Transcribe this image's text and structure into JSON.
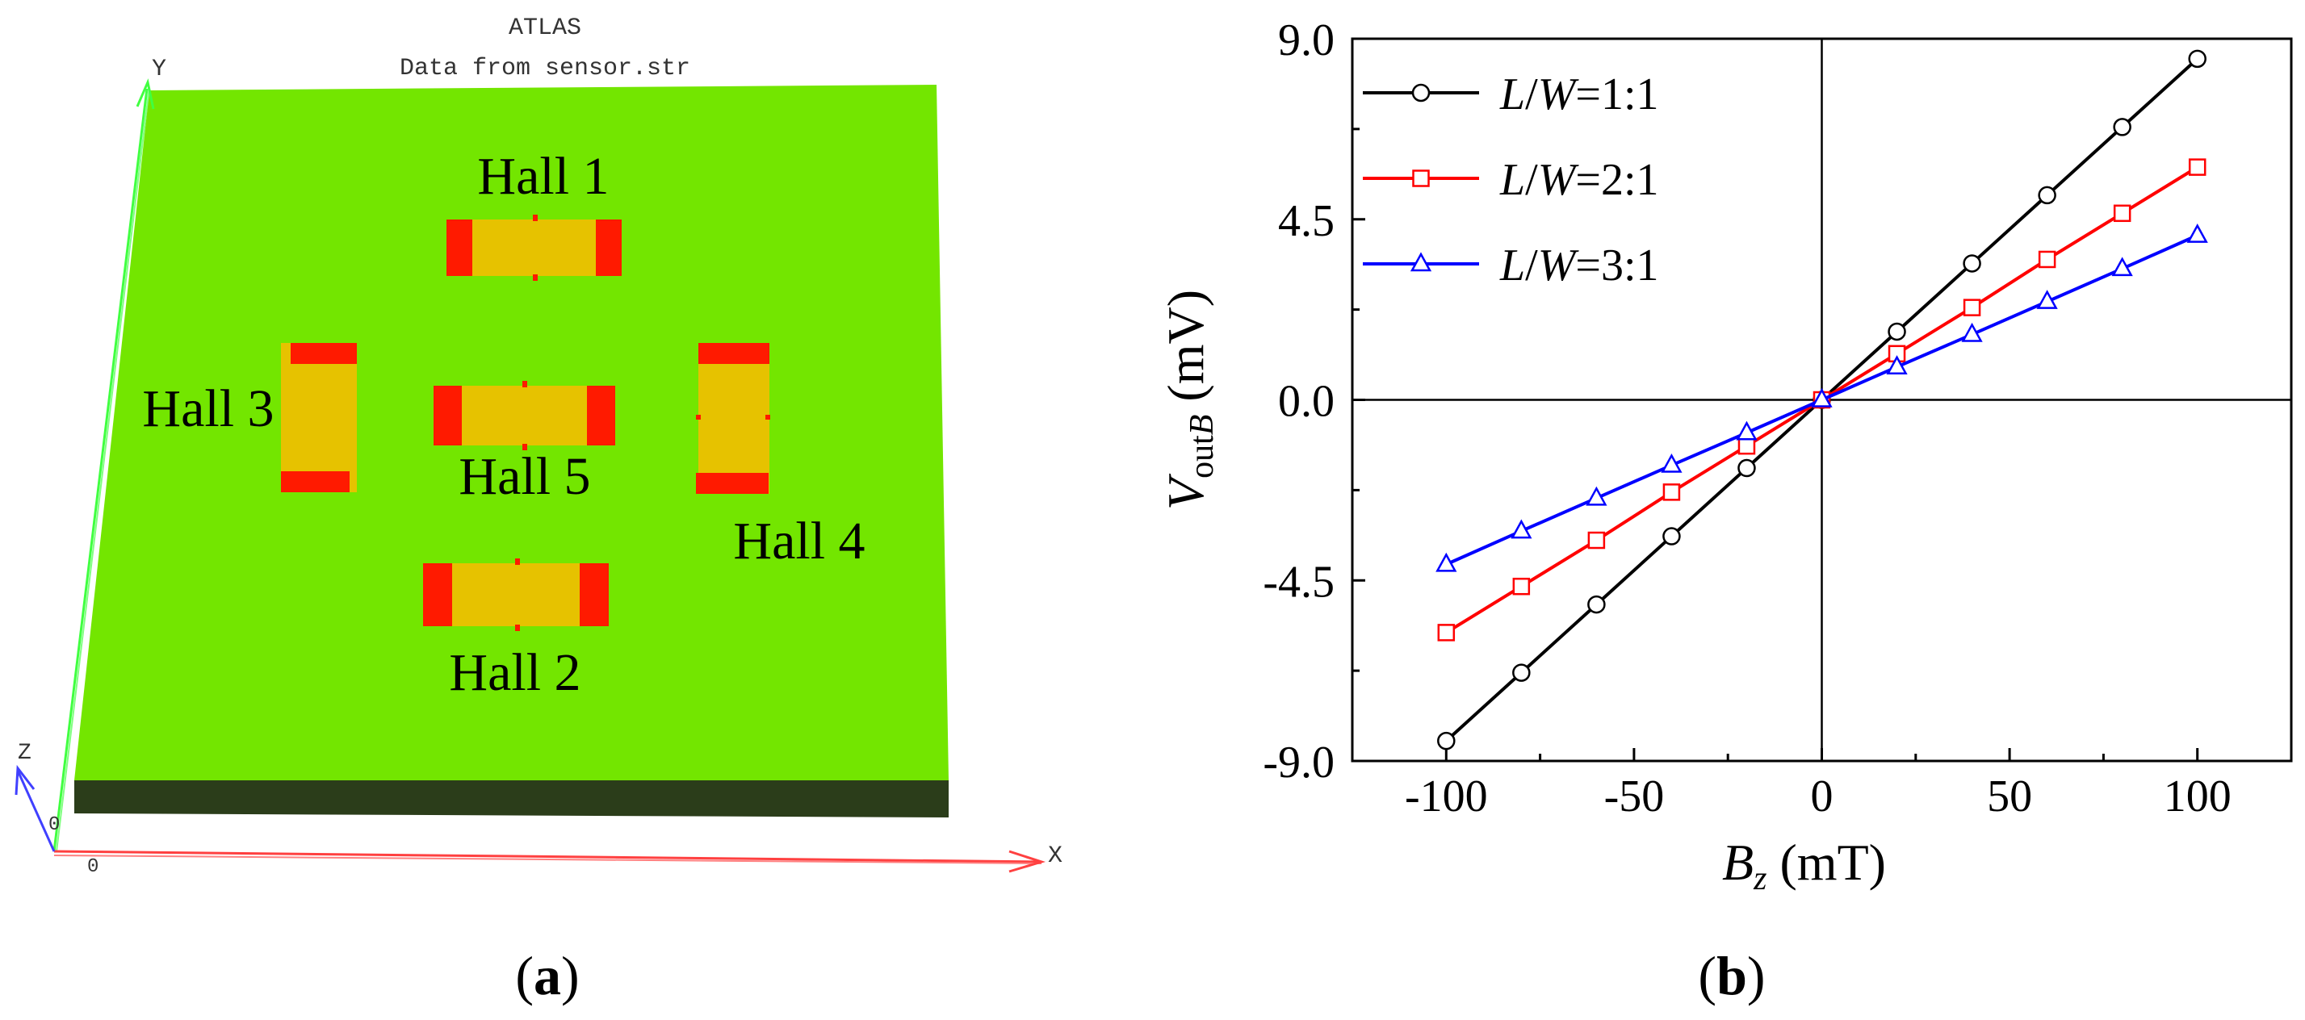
{
  "panel_a": {
    "title": "ATLAS",
    "subtitle": "Data from sensor.str",
    "axis_labels": {
      "y": "Y",
      "x": "X",
      "z": "Z",
      "origin_x": "0",
      "origin_z": "0"
    },
    "devices": [
      {
        "id": "hall1",
        "label": "Hall 1",
        "orientation": "horizontal"
      },
      {
        "id": "hall2",
        "label": "Hall 2",
        "orientation": "horizontal"
      },
      {
        "id": "hall3",
        "label": "Hall 3",
        "orientation": "vertical"
      },
      {
        "id": "hall4",
        "label": "Hall 4",
        "orientation": "vertical"
      },
      {
        "id": "hall5",
        "label": "Hall 5",
        "orientation": "horizontal"
      }
    ],
    "colors": {
      "substrate": "#73e600",
      "substrate_edge": "#2b3d1a",
      "device": "#e6c200",
      "contact": "#ff1a00",
      "axis_x": "#ff4040",
      "axis_y": "#40ff40",
      "axis_z": "#4040ff"
    },
    "caption": "(a)"
  },
  "chart_data": {
    "type": "line",
    "xlabel_main": "B",
    "xlabel_sub": "z",
    "xlabel_unit": " (mT)",
    "ylabel_main": "V",
    "ylabel_sub": "out",
    "ylabel_sub_italic": "B",
    "ylabel_unit": " (mV)",
    "xlim": [
      -125,
      125
    ],
    "ylim": [
      -9,
      9
    ],
    "xticks": [
      -100,
      -50,
      0,
      50,
      100
    ],
    "yticks": [
      -9.0,
      -4.5,
      0.0,
      4.5,
      9.0
    ],
    "xtick_labels": [
      "-100",
      "-50",
      "0",
      "50",
      "100"
    ],
    "ytick_labels": [
      "-9.0",
      "-4.5",
      "0.0",
      "4.5",
      "9.0"
    ],
    "x": [
      -100,
      -80,
      -60,
      -40,
      -20,
      0,
      20,
      40,
      60,
      80,
      100
    ],
    "series": [
      {
        "name_prefix": "L",
        "name_mid": "/",
        "name_suffix": "W",
        "name_ratio": "=1:1",
        "color": "#000000",
        "marker": "circle",
        "values": [
          -8.5,
          -6.8,
          -5.1,
          -3.4,
          -1.7,
          0,
          1.7,
          3.4,
          5.1,
          6.8,
          8.5
        ]
      },
      {
        "name_prefix": "L",
        "name_mid": "/",
        "name_suffix": "W",
        "name_ratio": "=2:1",
        "color": "#ff0000",
        "marker": "square",
        "values": [
          -5.8,
          -4.65,
          -3.5,
          -2.3,
          -1.15,
          0,
          1.15,
          2.3,
          3.5,
          4.65,
          5.8
        ]
      },
      {
        "name_prefix": "L",
        "name_mid": "/",
        "name_suffix": "W",
        "name_ratio": "=3:1",
        "color": "#0000ff",
        "marker": "triangle",
        "values": [
          -4.1,
          -3.27,
          -2.45,
          -1.63,
          -0.82,
          0,
          0.82,
          1.63,
          2.45,
          3.27,
          4.1
        ]
      }
    ],
    "zero_lines": true,
    "grid": false,
    "legend_position": "top-left",
    "caption": "(b)"
  }
}
